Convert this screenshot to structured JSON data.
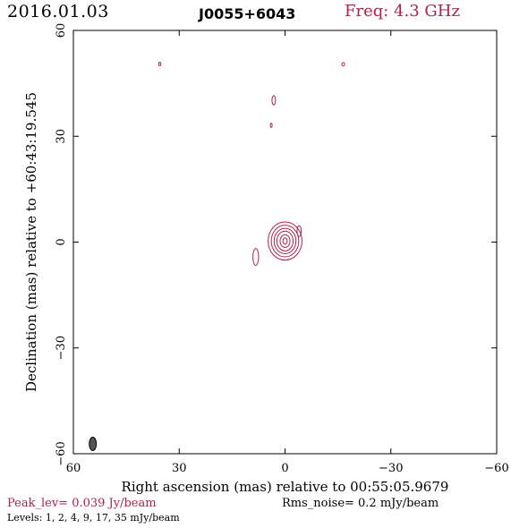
{
  "header": {
    "date": "2016.01.03",
    "source": "J0055+6043",
    "freq": "Freq: 4.3 GHz"
  },
  "footer": {
    "peak": "Peak_lev=  0.039 Jy/beam",
    "rms": "Rms_noise=   0.2 mJy/beam",
    "levels": "Levels:   1,   2,   4,   9,  17,  35 mJy/beam"
  },
  "colors": {
    "contour": "#b0204a",
    "beam": "#555555",
    "axis": "#000000"
  },
  "chart_data": {
    "type": "contour",
    "xlabel": "Right ascension (mas) relative to 00:55:05.9679",
    "ylabel": "Declination (mas) relative to +60:43:19.545",
    "xlim": [
      60,
      -60
    ],
    "ylim": [
      -60,
      60
    ],
    "xticks": [
      60,
      30,
      0,
      -30,
      -60
    ],
    "yticks": [
      -60,
      -30,
      0,
      30,
      60
    ],
    "xtick_labels": [
      "60",
      "30",
      "0",
      "−30",
      "−60"
    ],
    "ytick_labels": [
      "−60",
      "−30",
      "0",
      "30",
      "60"
    ],
    "contour_levels_mJy": [
      1,
      2,
      4,
      9,
      17,
      35
    ],
    "core": {
      "x": 0,
      "y": 0.3,
      "levels": [
        {
          "rx": 4.8,
          "ry": 5.4
        },
        {
          "rx": 3.9,
          "ry": 4.5
        },
        {
          "rx": 3.1,
          "ry": 3.6
        },
        {
          "rx": 2.3,
          "ry": 2.8
        },
        {
          "rx": 1.4,
          "ry": 1.8
        },
        {
          "rx": 0.6,
          "ry": 0.9
        }
      ]
    },
    "islands": [
      {
        "x": 8.3,
        "y": -4.2,
        "rx": 0.8,
        "ry": 2.4
      },
      {
        "x": -4.0,
        "y": 3.1,
        "rx": 0.6,
        "ry": 1.5
      },
      {
        "x": 3.2,
        "y": 40.2,
        "rx": 0.5,
        "ry": 1.3
      },
      {
        "x": 3.9,
        "y": 33.1,
        "rx": 0.25,
        "ry": 0.6
      },
      {
        "x": 35.5,
        "y": 50.5,
        "rx": 0.3,
        "ry": 0.5
      },
      {
        "x": -16.5,
        "y": 50.4,
        "rx": 0.4,
        "ry": 0.5
      }
    ],
    "beam": {
      "x": 54.5,
      "y": -57.2,
      "major_mas": 3.8,
      "minor_mas": 2.0,
      "pa_deg": 0
    }
  }
}
